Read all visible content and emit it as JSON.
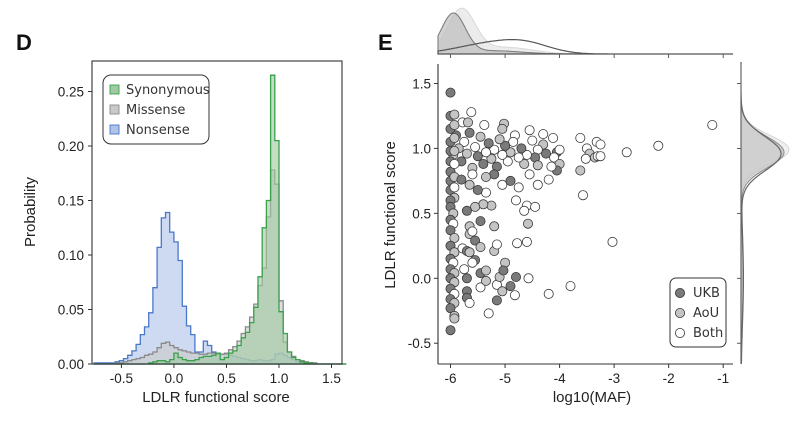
{
  "chart_data": [
    {
      "panel": "D",
      "type": "histogram",
      "xlabel": "LDLR functional score",
      "ylabel": "Probability",
      "xlim": [
        -0.78,
        1.6
      ],
      "ylim": [
        0,
        0.278
      ],
      "xticks": [
        "-0.5",
        "0.0",
        "0.5",
        "1.0",
        "1.5"
      ],
      "xtick_values": [
        -0.5,
        0.0,
        0.5,
        1.0,
        1.5
      ],
      "yticks": [
        "0.00",
        "0.05",
        "0.10",
        "0.15",
        "0.20",
        "0.25"
      ],
      "ytick_values": [
        0,
        0.05,
        0.1,
        0.15,
        0.2,
        0.25
      ],
      "legend_position": "top-left",
      "bin_start": -0.76,
      "bin_width": 0.04,
      "series": [
        {
          "name": "Nonsense",
          "color": "#4a78c8",
          "fill": "#aec3e8",
          "values": [
            0.001,
            0.001,
            0.001,
            0.001,
            0.001,
            0.002,
            0.003,
            0.005,
            0.008,
            0.012,
            0.018,
            0.027,
            0.034,
            0.047,
            0.07,
            0.107,
            0.134,
            0.139,
            0.121,
            0.112,
            0.095,
            0.053,
            0.035,
            0.027,
            0.011,
            0.011,
            0.021,
            0.017,
            0.011,
            0.01,
            0.009,
            0.009,
            0.008,
            0.007,
            0.006,
            0.005,
            0.004,
            0.003,
            0.003,
            0.004,
            0.003,
            0.003,
            0.004,
            0.009,
            0.01,
            0.008,
            0.006,
            0.004,
            0.002,
            0.001,
            0.001,
            0.001,
            0.0,
            0.0,
            0.0,
            0.0,
            0.0,
            0.0,
            0.0,
            0.0
          ]
        },
        {
          "name": "Missense",
          "color": "#8a8a8a",
          "fill": "#c9c9c9",
          "values": [
            0.0,
            0.0,
            0.0,
            0.0,
            0.0,
            0.001,
            0.001,
            0.002,
            0.003,
            0.004,
            0.005,
            0.006,
            0.008,
            0.009,
            0.011,
            0.015,
            0.019,
            0.02,
            0.017,
            0.015,
            0.013,
            0.012,
            0.011,
            0.01,
            0.01,
            0.009,
            0.009,
            0.01,
            0.01,
            0.009,
            0.009,
            0.01,
            0.013,
            0.016,
            0.021,
            0.028,
            0.034,
            0.043,
            0.055,
            0.072,
            0.088,
            0.135,
            0.178,
            0.165,
            0.058,
            0.02,
            0.011,
            0.007,
            0.004,
            0.003,
            0.002,
            0.001,
            0.001,
            0.0,
            0.0,
            0.0,
            0.0,
            0.0,
            0.0,
            0.0
          ]
        },
        {
          "name": "Synonymous",
          "color": "#3aa04a",
          "fill": "#9fcaa3",
          "values": [
            0.0,
            0.0,
            0.0,
            0.0,
            0.0,
            0.0,
            0.0,
            0.0,
            0.0,
            0.0,
            0.0,
            0.0,
            0.0,
            0.001,
            0.002,
            0.003,
            0.003,
            0.002,
            0.004,
            0.01,
            0.006,
            0.004,
            0.003,
            0.003,
            0.004,
            0.006,
            0.007,
            0.007,
            0.008,
            0.01,
            0.004,
            0.006,
            0.01,
            0.012,
            0.017,
            0.024,
            0.029,
            0.038,
            0.052,
            0.08,
            0.125,
            0.15,
            0.265,
            0.205,
            0.048,
            0.028,
            0.011,
            0.006,
            0.004,
            0.002,
            0.001,
            0.001,
            0.0,
            0.0,
            0.0,
            0.0,
            0.0,
            0.0,
            0.0,
            0.0
          ]
        }
      ]
    },
    {
      "panel": "E",
      "type": "scatter",
      "xlabel": "log10(MAF)",
      "ylabel": "LDLR functional score",
      "xlim": [
        -6.23,
        -0.82
      ],
      "ylim": [
        -0.66,
        1.65
      ],
      "xticks": [
        "-6",
        "-5",
        "-4",
        "-3",
        "-2",
        "-1"
      ],
      "xtick_values": [
        -6,
        -5,
        -4,
        -3,
        -2,
        -1
      ],
      "yticks": [
        "-0.5",
        "0.0",
        "0.5",
        "1.0",
        "1.5"
      ],
      "ytick_values": [
        -0.5,
        0.0,
        0.5,
        1.0,
        1.5
      ],
      "legend_position": "bottom-right",
      "marginals": "kde (top: log10(MAF), right: score)",
      "groups": [
        {
          "name": "UKB",
          "fill": "#7a7a7a"
        },
        {
          "name": "AoU",
          "fill": "#c4c4c4"
        },
        {
          "name": "Both",
          "fill": "#ffffff"
        }
      ],
      "points": [
        {
          "x": -6.0,
          "y": 1.43,
          "g": "UKB"
        },
        {
          "x": -6.0,
          "y": 1.25,
          "g": "UKB"
        },
        {
          "x": -5.93,
          "y": 1.26,
          "g": "AoU"
        },
        {
          "x": -5.62,
          "y": 1.28,
          "g": "Both"
        },
        {
          "x": -5.78,
          "y": 1.2,
          "g": "Both"
        },
        {
          "x": -5.68,
          "y": 1.2,
          "g": "AoU"
        },
        {
          "x": -5.38,
          "y": 1.18,
          "g": "Both"
        },
        {
          "x": -5.02,
          "y": 1.19,
          "g": "AoU"
        },
        {
          "x": -5.05,
          "y": 1.15,
          "g": "AoU"
        },
        {
          "x": -4.55,
          "y": 1.14,
          "g": "Both"
        },
        {
          "x": -4.3,
          "y": 1.11,
          "g": "Both"
        },
        {
          "x": -4.82,
          "y": 1.1,
          "g": "Both"
        },
        {
          "x": -4.12,
          "y": 1.08,
          "g": "Both"
        },
        {
          "x": -3.62,
          "y": 1.08,
          "g": "Both"
        },
        {
          "x": -3.32,
          "y": 1.05,
          "g": "Both"
        },
        {
          "x": -3.25,
          "y": 1.03,
          "g": "Both"
        },
        {
          "x": -3.5,
          "y": 1.0,
          "g": "Both"
        },
        {
          "x": -3.45,
          "y": 0.96,
          "g": "AoU"
        },
        {
          "x": -3.35,
          "y": 0.93,
          "g": "AoU"
        },
        {
          "x": -3.3,
          "y": 0.94,
          "g": "Both"
        },
        {
          "x": -3.52,
          "y": 0.92,
          "g": "Both"
        },
        {
          "x": -3.25,
          "y": 0.94,
          "g": "Both"
        },
        {
          "x": -2.77,
          "y": 0.97,
          "g": "Both"
        },
        {
          "x": -2.19,
          "y": 1.02,
          "g": "Both"
        },
        {
          "x": -1.2,
          "y": 1.18,
          "g": "Both"
        },
        {
          "x": -3.62,
          "y": 0.83,
          "g": "AoU"
        },
        {
          "x": -3.57,
          "y": 0.64,
          "g": "Both"
        },
        {
          "x": -4.05,
          "y": 0.97,
          "g": "UKB"
        },
        {
          "x": -4.0,
          "y": 0.99,
          "g": "Both"
        },
        {
          "x": -4.1,
          "y": 0.93,
          "g": "Both"
        },
        {
          "x": -4.0,
          "y": 0.88,
          "g": "AoU"
        },
        {
          "x": -4.05,
          "y": 0.83,
          "g": "UKB"
        },
        {
          "x": -4.15,
          "y": 0.86,
          "g": "Both"
        },
        {
          "x": -4.25,
          "y": 0.96,
          "g": "UKB"
        },
        {
          "x": -4.3,
          "y": 1.03,
          "g": "AoU"
        },
        {
          "x": -4.4,
          "y": 0.99,
          "g": "Both"
        },
        {
          "x": -4.45,
          "y": 0.93,
          "g": "UKB"
        },
        {
          "x": -4.5,
          "y": 1.06,
          "g": "Both"
        },
        {
          "x": -4.6,
          "y": 0.95,
          "g": "Both"
        },
        {
          "x": -4.65,
          "y": 0.88,
          "g": "AoU"
        },
        {
          "x": -4.7,
          "y": 1.0,
          "g": "UKB"
        },
        {
          "x": -4.75,
          "y": 0.93,
          "g": "Both"
        },
        {
          "x": -4.85,
          "y": 1.05,
          "g": "Both"
        },
        {
          "x": -4.9,
          "y": 0.97,
          "g": "AoU"
        },
        {
          "x": -4.95,
          "y": 0.9,
          "g": "Both"
        },
        {
          "x": -5.0,
          "y": 1.02,
          "g": "UKB"
        },
        {
          "x": -5.05,
          "y": 0.95,
          "g": "Both"
        },
        {
          "x": -5.1,
          "y": 1.07,
          "g": "AoU"
        },
        {
          "x": -5.15,
          "y": 0.86,
          "g": "UKB"
        },
        {
          "x": -5.2,
          "y": 0.99,
          "g": "Both"
        },
        {
          "x": -5.25,
          "y": 0.92,
          "g": "AoU"
        },
        {
          "x": -5.3,
          "y": 1.04,
          "g": "UKB"
        },
        {
          "x": -5.35,
          "y": 0.97,
          "g": "Both"
        },
        {
          "x": -5.4,
          "y": 0.88,
          "g": "UKB"
        },
        {
          "x": -5.45,
          "y": 1.09,
          "g": "AoU"
        },
        {
          "x": -5.5,
          "y": 0.94,
          "g": "UKB"
        },
        {
          "x": -5.55,
          "y": 1.01,
          "g": "Both"
        },
        {
          "x": -5.6,
          "y": 0.85,
          "g": "AoU"
        },
        {
          "x": -5.65,
          "y": 1.12,
          "g": "UKB"
        },
        {
          "x": -5.7,
          "y": 0.96,
          "g": "AoU"
        },
        {
          "x": -5.75,
          "y": 1.05,
          "g": "Both"
        },
        {
          "x": -5.8,
          "y": 0.9,
          "g": "UKB"
        },
        {
          "x": -5.85,
          "y": 1.0,
          "g": "AoU"
        },
        {
          "x": -5.9,
          "y": 1.1,
          "g": "UKB"
        },
        {
          "x": -5.95,
          "y": 0.95,
          "g": "AoU"
        },
        {
          "x": -6.0,
          "y": 1.05,
          "g": "UKB"
        },
        {
          "x": -6.0,
          "y": 0.98,
          "g": "UKB"
        },
        {
          "x": -6.0,
          "y": 0.9,
          "g": "UKB"
        },
        {
          "x": -6.0,
          "y": 0.82,
          "g": "UKB"
        },
        {
          "x": -6.0,
          "y": 0.75,
          "g": "UKB"
        },
        {
          "x": -6.0,
          "y": 0.68,
          "g": "UKB"
        },
        {
          "x": -6.0,
          "y": 1.15,
          "g": "UKB"
        },
        {
          "x": -5.93,
          "y": 1.18,
          "g": "AoU"
        },
        {
          "x": -5.93,
          "y": 1.08,
          "g": "AoU"
        },
        {
          "x": -5.93,
          "y": 0.98,
          "g": "AoU"
        },
        {
          "x": -5.93,
          "y": 0.88,
          "g": "Both"
        },
        {
          "x": -5.93,
          "y": 0.78,
          "g": "AoU"
        },
        {
          "x": -5.93,
          "y": 0.7,
          "g": "Both"
        },
        {
          "x": -5.93,
          "y": 0.62,
          "g": "AoU"
        },
        {
          "x": -6.0,
          "y": 0.6,
          "g": "UKB"
        },
        {
          "x": -6.0,
          "y": 0.55,
          "g": "UKB"
        },
        {
          "x": -5.95,
          "y": 0.5,
          "g": "AoU"
        },
        {
          "x": -6.0,
          "y": 0.45,
          "g": "UKB"
        },
        {
          "x": -5.95,
          "y": 0.42,
          "g": "Both"
        },
        {
          "x": -6.0,
          "y": 0.37,
          "g": "UKB"
        },
        {
          "x": -5.93,
          "y": 0.31,
          "g": "AoU"
        },
        {
          "x": -6.0,
          "y": 0.25,
          "g": "UKB"
        },
        {
          "x": -5.93,
          "y": 0.2,
          "g": "AoU"
        },
        {
          "x": -6.0,
          "y": 0.15,
          "g": "UKB"
        },
        {
          "x": -5.95,
          "y": 0.12,
          "g": "Both"
        },
        {
          "x": -6.0,
          "y": 0.07,
          "g": "UKB"
        },
        {
          "x": -5.93,
          "y": 0.04,
          "g": "AoU"
        },
        {
          "x": -6.0,
          "y": 0.0,
          "g": "UKB"
        },
        {
          "x": -5.93,
          "y": -0.03,
          "g": "AoU"
        },
        {
          "x": -6.0,
          "y": -0.08,
          "g": "UKB"
        },
        {
          "x": -5.93,
          "y": -0.12,
          "g": "Both"
        },
        {
          "x": -6.0,
          "y": -0.16,
          "g": "UKB"
        },
        {
          "x": -5.93,
          "y": -0.19,
          "g": "AoU"
        },
        {
          "x": -6.0,
          "y": -0.23,
          "g": "UKB"
        },
        {
          "x": -5.93,
          "y": -0.29,
          "g": "AoU"
        },
        {
          "x": -5.93,
          "y": -0.31,
          "g": "AoU"
        },
        {
          "x": -6.0,
          "y": -0.4,
          "g": "UKB"
        },
        {
          "x": -5.78,
          "y": 0.23,
          "g": "Both"
        },
        {
          "x": -5.75,
          "y": 0.07,
          "g": "Both"
        },
        {
          "x": -5.7,
          "y": 0.21,
          "g": "UKB"
        },
        {
          "x": -5.65,
          "y": 0.2,
          "g": "AoU"
        },
        {
          "x": -5.7,
          "y": 0.0,
          "g": "UKB"
        },
        {
          "x": -5.7,
          "y": -0.1,
          "g": "UKB"
        },
        {
          "x": -5.7,
          "y": -0.15,
          "g": "UKB"
        },
        {
          "x": -5.65,
          "y": -0.19,
          "g": "Both"
        },
        {
          "x": -5.65,
          "y": 0.4,
          "g": "AoU"
        },
        {
          "x": -5.65,
          "y": 0.34,
          "g": "AoU"
        },
        {
          "x": -5.6,
          "y": 0.36,
          "g": "Both"
        },
        {
          "x": -5.55,
          "y": 0.29,
          "g": "UKB"
        },
        {
          "x": -5.55,
          "y": 0.14,
          "g": "UKB"
        },
        {
          "x": -5.6,
          "y": 0.12,
          "g": "Both"
        },
        {
          "x": -5.45,
          "y": 0.44,
          "g": "UKB"
        },
        {
          "x": -5.45,
          "y": 0.24,
          "g": "AoU"
        },
        {
          "x": -5.45,
          "y": 0.04,
          "g": "UKB"
        },
        {
          "x": -5.45,
          "y": -0.07,
          "g": "Both"
        },
        {
          "x": -5.35,
          "y": 0.06,
          "g": "AoU"
        },
        {
          "x": -5.35,
          "y": -0.02,
          "g": "AoU"
        },
        {
          "x": -5.3,
          "y": -0.27,
          "g": "Both"
        },
        {
          "x": -5.2,
          "y": 0.4,
          "g": "AoU"
        },
        {
          "x": -5.2,
          "y": 0.21,
          "g": "AoU"
        },
        {
          "x": -5.15,
          "y": 0.26,
          "g": "Both"
        },
        {
          "x": -5.15,
          "y": -0.05,
          "g": "Both"
        },
        {
          "x": -5.15,
          "y": -0.17,
          "g": "UKB"
        },
        {
          "x": -5.1,
          "y": 0.01,
          "g": "AoU"
        },
        {
          "x": -5.05,
          "y": -0.1,
          "g": "AoU"
        },
        {
          "x": -5.0,
          "y": 0.12,
          "g": "AoU"
        },
        {
          "x": -5.03,
          "y": 0.06,
          "g": "UKB"
        },
        {
          "x": -4.9,
          "y": -0.06,
          "g": "UKB"
        },
        {
          "x": -4.82,
          "y": -0.13,
          "g": "Both"
        },
        {
          "x": -4.8,
          "y": 0.01,
          "g": "UKB"
        },
        {
          "x": -4.78,
          "y": 0.27,
          "g": "Both"
        },
        {
          "x": -4.6,
          "y": 0.28,
          "g": "Both"
        },
        {
          "x": -4.58,
          "y": 0.42,
          "g": "AoU"
        },
        {
          "x": -4.57,
          "y": 0.0,
          "g": "Both"
        },
        {
          "x": -4.2,
          "y": -0.12,
          "g": "Both"
        },
        {
          "x": -3.8,
          "y": -0.06,
          "g": "Both"
        },
        {
          "x": -3.03,
          "y": 0.28,
          "g": "Both"
        },
        {
          "x": -4.6,
          "y": 0.56,
          "g": "Both"
        },
        {
          "x": -4.45,
          "y": 0.55,
          "g": "Both"
        },
        {
          "x": -4.8,
          "y": 0.6,
          "g": "Both"
        },
        {
          "x": -4.65,
          "y": 0.52,
          "g": "Both"
        },
        {
          "x": -5.25,
          "y": 0.56,
          "g": "AoU"
        },
        {
          "x": -5.4,
          "y": 0.57,
          "g": "AoU"
        },
        {
          "x": -5.55,
          "y": 0.55,
          "g": "AoU"
        },
        {
          "x": -5.7,
          "y": 0.52,
          "g": "UKB"
        },
        {
          "x": -5.35,
          "y": 0.66,
          "g": "Both"
        },
        {
          "x": -5.5,
          "y": 0.68,
          "g": "UKB"
        },
        {
          "x": -5.65,
          "y": 0.72,
          "g": "AoU"
        },
        {
          "x": -5.05,
          "y": 0.72,
          "g": "Both"
        },
        {
          "x": -4.9,
          "y": 0.75,
          "g": "UKB"
        },
        {
          "x": -4.75,
          "y": 0.7,
          "g": "Both"
        },
        {
          "x": -4.4,
          "y": 0.72,
          "g": "Both"
        },
        {
          "x": -4.2,
          "y": 0.76,
          "g": "Both"
        },
        {
          "x": -4.55,
          "y": 0.8,
          "g": "Both"
        },
        {
          "x": -4.4,
          "y": 0.87,
          "g": "AoU"
        },
        {
          "x": -5.2,
          "y": 0.8,
          "g": "UKB"
        },
        {
          "x": -5.35,
          "y": 0.78,
          "g": "AoU"
        },
        {
          "x": -5.6,
          "y": 0.8,
          "g": "Both"
        },
        {
          "x": -5.8,
          "y": 0.76,
          "g": "UKB"
        }
      ]
    }
  ],
  "legend_D": [
    "Synonymous",
    "Missense",
    "Nonsense"
  ],
  "legend_E": [
    "UKB",
    "AoU",
    "Both"
  ],
  "panels": {
    "left": "D",
    "right": "E"
  }
}
